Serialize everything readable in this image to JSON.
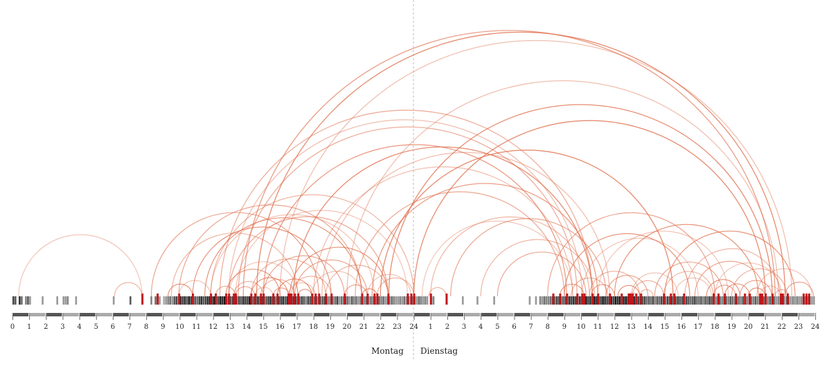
{
  "chart_data": {
    "type": "arc-diagram",
    "title": "",
    "x_unit": "hours since Monday 00:00",
    "xlim": [
      0,
      48
    ],
    "day_labels": [
      "Montag",
      "Dienstag"
    ],
    "x_ticks_day1": [
      "0",
      "1",
      "2",
      "3",
      "4",
      "5",
      "6",
      "7",
      "8",
      "9",
      "10",
      "11",
      "12",
      "13",
      "14",
      "15",
      "16",
      "17",
      "18",
      "19",
      "20",
      "21",
      "22",
      "23",
      "24"
    ],
    "x_ticks_day2": [
      "1",
      "2",
      "3",
      "4",
      "5",
      "6",
      "7",
      "8",
      "9",
      "10",
      "11",
      "12",
      "13",
      "14",
      "15",
      "16",
      "17",
      "18",
      "19",
      "20",
      "21",
      "22",
      "23",
      "24"
    ],
    "colors": {
      "arc": "#e0714f",
      "highlight_event": "#c0141a",
      "axis_dark": "#555555",
      "axis_light": "#aaaaaa",
      "divider": "#bbbbbb"
    },
    "gray_event_bins": {
      "bin_hours": 0.125,
      "day1": [
        7,
        6,
        0,
        8,
        5,
        0,
        4,
        6,
        3,
        0,
        0,
        0,
        0,
        0,
        3,
        0,
        0,
        0,
        0,
        0,
        0,
        3,
        0,
        0,
        3,
        3,
        4,
        0,
        0,
        0,
        3,
        0,
        0,
        0,
        0,
        0,
        0,
        0,
        0,
        0,
        0,
        0,
        0,
        0,
        0,
        0,
        0,
        0,
        3,
        0,
        0,
        0,
        0,
        0,
        0,
        0,
        6,
        0,
        0,
        0,
        0,
        0,
        0,
        0,
        0,
        0,
        4,
        0,
        5,
        0,
        3,
        0,
        2,
        3,
        4,
        5,
        3,
        6,
        7,
        5,
        8,
        7,
        8,
        6,
        9,
        7,
        8,
        6,
        5,
        7,
        8,
        6,
        7,
        8,
        9,
        8,
        9,
        8,
        7,
        9,
        8,
        9,
        7,
        8,
        6,
        7,
        8,
        5,
        7,
        6,
        8,
        7,
        7,
        9,
        8,
        6,
        7,
        8,
        6,
        7,
        5,
        6,
        7,
        8,
        7,
        6,
        5,
        7,
        7,
        8,
        6,
        8,
        7,
        6,
        7,
        8,
        6,
        5,
        7,
        6,
        4,
        7,
        6,
        5,
        5,
        6,
        4,
        5,
        6,
        7,
        5,
        4,
        6,
        4,
        5,
        7,
        3,
        5,
        4,
        6,
        5,
        3,
        6,
        4,
        5,
        3,
        4,
        5,
        4,
        6,
        3,
        5,
        4,
        6,
        3,
        5,
        4,
        5,
        3,
        4,
        3,
        5,
        4,
        3,
        3,
        4,
        3,
        5,
        3,
        4,
        3,
        4
      ],
      "day2": [
        4,
        3,
        5,
        4,
        3,
        4,
        3,
        0,
        3,
        4,
        0,
        0,
        0,
        0,
        0,
        0,
        0,
        0,
        0,
        0,
        0,
        0,
        0,
        3,
        0,
        0,
        0,
        0,
        0,
        0,
        3,
        0,
        0,
        0,
        0,
        0,
        0,
        0,
        3,
        0,
        0,
        0,
        0,
        0,
        0,
        0,
        0,
        0,
        0,
        0,
        0,
        0,
        0,
        0,
        0,
        3,
        0,
        0,
        3,
        0,
        4,
        3,
        5,
        4,
        4,
        5,
        6,
        5,
        7,
        6,
        5,
        6,
        6,
        7,
        8,
        7,
        8,
        7,
        6,
        8,
        7,
        8,
        9,
        7,
        8,
        6,
        9,
        8,
        8,
        7,
        9,
        8,
        7,
        8,
        9,
        7,
        9,
        8,
        9,
        7,
        8,
        9,
        8,
        7,
        7,
        8,
        6,
        7,
        8,
        6,
        7,
        5,
        6,
        5,
        7,
        4,
        6,
        5,
        7,
        6,
        5,
        7,
        6,
        8,
        5,
        6,
        7,
        6,
        6,
        5,
        7,
        6,
        5,
        6,
        7,
        5,
        5,
        6,
        4,
        6,
        5,
        7,
        6,
        5,
        4,
        6,
        5,
        4,
        6,
        5,
        4,
        6,
        5,
        4,
        6,
        5,
        4,
        6,
        5,
        4,
        4,
        5,
        4,
        6,
        4,
        5,
        4,
        5,
        5,
        4,
        6,
        4,
        5,
        3,
        4,
        5,
        4,
        3,
        5,
        4,
        3,
        4,
        3,
        4,
        3,
        4,
        3,
        4,
        3,
        4,
        3,
        3
      ]
    },
    "highlight_events": [
      7.75,
      8.66,
      9.95,
      10.77,
      11.85,
      12.14,
      12.76,
      12.93,
      13.22,
      13.34,
      14.26,
      14.5,
      14.84,
      15.0,
      15.58,
      15.83,
      16.49,
      16.58,
      16.66,
      16.87,
      17.07,
      17.9,
      18.11,
      18.32,
      18.73,
      19.06,
      19.85,
      20.89,
      21.22,
      21.63,
      21.8,
      22.46,
      23.62,
      23.83,
      24.0,
      25.0,
      25.94,
      32.32,
      32.73,
      33.14,
      33.76,
      34.05,
      34.18,
      34.67,
      35.0,
      35.71,
      36.41,
      36.83,
      36.95,
      37.07,
      37.28,
      37.57,
      38.94,
      39.35,
      39.56,
      40.14,
      41.91,
      42.2,
      42.58,
      43.24,
      43.78,
      44.07,
      44.69,
      44.81,
      45.02,
      45.43,
      45.93,
      46.05,
      46.34,
      47.29,
      47.46,
      47.62
    ],
    "arcs": [
      [
        0.37,
        7.75
      ],
      [
        6.1,
        7.75
      ],
      [
        8.3,
        18.32
      ],
      [
        9.3,
        10.77
      ],
      [
        9.95,
        11.85
      ],
      [
        11.85,
        24.0
      ],
      [
        12.14,
        13.34
      ],
      [
        12.76,
        16.0
      ],
      [
        12.93,
        17.07
      ],
      [
        13.22,
        15.0
      ],
      [
        13.34,
        14.5
      ],
      [
        14.26,
        16.49
      ],
      [
        14.5,
        15.58
      ],
      [
        14.84,
        16.87
      ],
      [
        15.58,
        16.58
      ],
      [
        15.83,
        17.9
      ],
      [
        16.49,
        18.11
      ],
      [
        16.66,
        19.06
      ],
      [
        16.87,
        21.22
      ],
      [
        17.07,
        17.9
      ],
      [
        17.9,
        20.89
      ],
      [
        18.73,
        22.46
      ],
      [
        19.85,
        21.22
      ],
      [
        20.89,
        21.8
      ],
      [
        21.22,
        23.83
      ],
      [
        21.8,
        24.0
      ],
      [
        9.95,
        20.89
      ],
      [
        10.77,
        19.06
      ],
      [
        11.85,
        21.63
      ],
      [
        9.5,
        17.07
      ],
      [
        12.93,
        22.46
      ],
      [
        11.5,
        20.89
      ],
      [
        13.34,
        23.62
      ],
      [
        14.26,
        18.73
      ],
      [
        15.0,
        19.85
      ],
      [
        16.58,
        22.46
      ],
      [
        12.93,
        34.05
      ],
      [
        12.4,
        34.67
      ],
      [
        13.8,
        45.6
      ],
      [
        14.6,
        46.2
      ],
      [
        16.0,
        46.6
      ],
      [
        13.5,
        33.76
      ],
      [
        15.0,
        33.14
      ],
      [
        16.8,
        34.67
      ],
      [
        18.0,
        33.5
      ],
      [
        20.5,
        33.0
      ],
      [
        21.5,
        35.0
      ],
      [
        22.0,
        39.5
      ],
      [
        24.5,
        33.5
      ],
      [
        25.0,
        34.5
      ],
      [
        26.2,
        35.5
      ],
      [
        22.5,
        45.43
      ],
      [
        20.0,
        45.8
      ],
      [
        28.0,
        34.8
      ],
      [
        29.0,
        34.3
      ],
      [
        24.0,
        45.02
      ],
      [
        18.5,
        35.71
      ],
      [
        24.9,
        25.94
      ],
      [
        32.0,
        42.0
      ],
      [
        33.0,
        40.5
      ],
      [
        34.05,
        41.0
      ],
      [
        34.5,
        37.5
      ],
      [
        35.5,
        38.0
      ],
      [
        36.2,
        37.5
      ],
      [
        37.0,
        39.8
      ],
      [
        37.5,
        38.3
      ],
      [
        38.4,
        42.5
      ],
      [
        39.0,
        46.8
      ],
      [
        39.6,
        41.8
      ],
      [
        40.2,
        45.9
      ],
      [
        40.8,
        45.0
      ],
      [
        41.5,
        43.5
      ],
      [
        42.0,
        46.0
      ],
      [
        43.0,
        46.3
      ],
      [
        43.5,
        45.4
      ],
      [
        44.0,
        45.0
      ],
      [
        44.5,
        47.8
      ],
      [
        45.6,
        46.4
      ],
      [
        46.2,
        47.9
      ],
      [
        36.0,
        44.6
      ],
      [
        35.0,
        42.8
      ],
      [
        33.4,
        35.6
      ],
      [
        34.6,
        36.0
      ],
      [
        32.73,
        34.18
      ],
      [
        36.83,
        37.28
      ],
      [
        37.07,
        38.94
      ],
      [
        41.91,
        43.24
      ],
      [
        42.58,
        44.07
      ],
      [
        44.69,
        45.93
      ],
      [
        38.94,
        41.91
      ]
    ]
  }
}
